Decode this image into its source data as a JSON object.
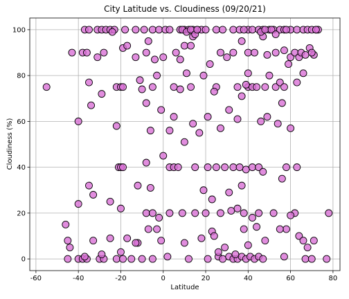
{
  "chart_data": {
    "type": "scatter",
    "title": "City Latitude vs. Cloudiness (09/20/21)",
    "x_label": "Latitude",
    "y_label": "Cloudiness (%)",
    "color": "#da70d6",
    "edgecolor": "#000000",
    "grid": true,
    "xlim": [
      -62.9,
      83.3
    ],
    "ylim": [
      -5.1,
      105.1
    ],
    "xticks": [
      -60,
      -40,
      -20,
      0,
      20,
      40,
      60,
      80
    ],
    "yticks": [
      0,
      20,
      40,
      60,
      80,
      100
    ],
    "x": [
      -37,
      -35,
      -31,
      -29,
      -27,
      -25,
      -23,
      -18,
      -13,
      -9,
      -5,
      -2,
      1,
      3,
      8,
      10,
      12,
      14,
      16,
      18,
      20,
      25,
      28,
      33,
      36,
      40,
      42,
      45,
      47,
      50,
      52,
      55,
      57,
      60,
      63,
      66,
      68,
      70,
      72,
      38,
      -45,
      -40,
      -38,
      -36,
      -30,
      -28,
      -22,
      -19,
      -15,
      -10,
      -5,
      2,
      12,
      21,
      26,
      28,
      31,
      33,
      35,
      37,
      39,
      41,
      43,
      45,
      47,
      57,
      67,
      70,
      77,
      -37,
      -55,
      -35,
      -22,
      -20,
      -10,
      -5,
      5,
      8,
      13,
      25,
      35,
      37,
      40,
      42,
      44,
      48,
      53,
      55,
      57,
      63,
      -43,
      -38,
      -36,
      -31,
      -28,
      -19,
      -13,
      -8,
      -4,
      6,
      27,
      30,
      33,
      37,
      40,
      43,
      49,
      53,
      57,
      60,
      62,
      64,
      65,
      67,
      69,
      71,
      73,
      -24,
      -17,
      10,
      -21,
      -20,
      -19,
      3,
      5,
      15,
      21,
      25,
      29,
      33,
      36,
      39,
      42,
      45,
      47,
      58,
      63,
      -8,
      0,
      7,
      -40,
      -25,
      -20,
      -8,
      -5,
      -2,
      3,
      9,
      15,
      20,
      27,
      32,
      35,
      38,
      42,
      45,
      52,
      58,
      62,
      78,
      -46,
      -45,
      -44,
      -33,
      -25,
      -20,
      -17,
      -12,
      -7,
      -1,
      10,
      18,
      23,
      26,
      29,
      34,
      38,
      40,
      44,
      48,
      55,
      60,
      64,
      66,
      68,
      71,
      -29,
      -13,
      -3,
      24,
      -40,
      -22,
      -8,
      -6,
      -1,
      3,
      5,
      10,
      14,
      17,
      21,
      27,
      31,
      35,
      39,
      46,
      49,
      54,
      56,
      60,
      -35,
      -33,
      -12,
      -6,
      19,
      23,
      31,
      37,
      56,
      -29,
      -34,
      -3,
      0,
      8,
      11,
      13,
      19,
      22,
      24,
      40,
      47,
      50,
      59,
      66,
      70,
      72,
      -19,
      -11,
      -7,
      14,
      9,
      11,
      13,
      15,
      16,
      46,
      48,
      51,
      53,
      58
    ],
    "values": [
      100,
      100,
      100,
      100,
      100,
      100,
      100,
      100,
      100,
      100,
      100,
      100,
      100,
      100,
      100,
      100,
      100,
      100,
      100,
      100,
      100,
      100,
      100,
      100,
      100,
      100,
      100,
      100,
      100,
      100,
      100,
      100,
      100,
      100,
      100,
      100,
      100,
      100,
      100,
      100,
      0,
      0,
      0,
      0,
      0,
      0,
      0,
      0,
      0,
      0,
      0,
      1,
      0,
      0,
      1,
      0,
      1,
      0,
      0,
      1,
      0,
      1,
      0,
      1,
      0,
      1,
      0,
      0,
      0,
      1,
      75,
      77,
      75,
      75,
      74,
      75,
      75,
      74,
      75,
      75,
      75,
      71,
      75,
      75,
      75,
      75,
      75,
      77,
      75,
      77,
      90,
      90,
      90,
      88,
      90,
      92,
      88,
      90,
      87,
      90,
      90,
      88,
      90,
      95,
      90,
      90,
      89,
      90,
      91,
      88,
      90,
      88,
      90,
      89,
      92,
      89,
      100,
      99,
      93,
      93,
      40,
      40,
      40,
      40,
      40,
      40,
      40,
      40,
      40,
      40,
      40,
      39,
      40,
      40,
      38,
      40,
      40,
      42,
      45,
      40,
      24,
      25,
      22,
      20,
      20,
      18,
      20,
      20,
      20,
      20,
      20,
      21,
      22,
      20,
      18,
      20,
      20,
      13,
      20,
      20,
      15,
      8,
      5,
      8,
      9,
      3,
      9,
      7,
      13,
      8,
      7,
      9,
      12,
      3,
      5,
      2,
      13,
      6,
      14,
      8,
      13,
      19,
      10,
      8,
      5,
      8,
      2,
      7,
      13,
      10,
      60,
      58,
      68,
      56,
      65,
      56,
      62,
      51,
      59,
      55,
      62,
      57,
      65,
      61,
      76,
      60,
      62,
      59,
      68,
      57,
      32,
      28,
      32,
      31,
      30,
      26,
      29,
      32,
      35,
      72,
      67,
      80,
      88,
      87,
      81,
      93,
      80,
      85,
      73,
      81,
      97,
      80,
      85,
      81,
      90,
      100,
      75,
      78,
      95,
      97,
      100,
      99,
      100,
      98,
      100,
      99,
      100,
      100,
      98,
      100
    ]
  }
}
